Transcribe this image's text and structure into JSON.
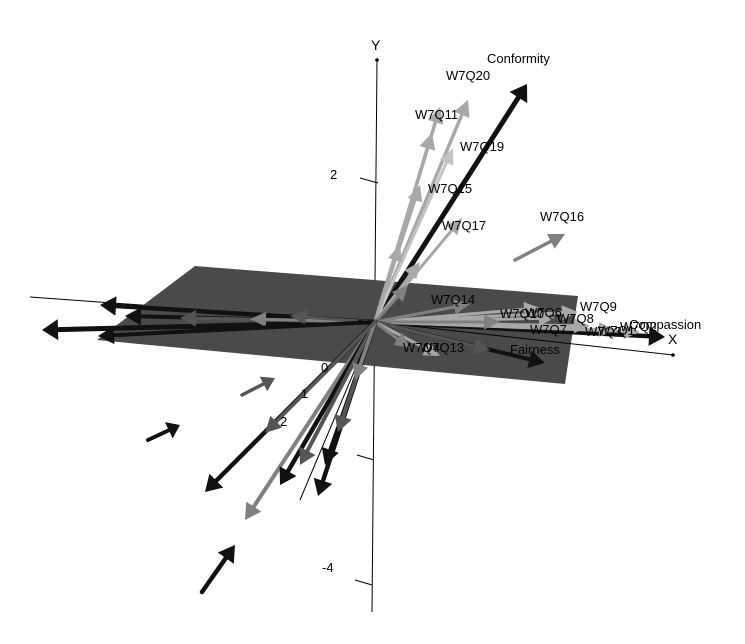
{
  "chart_data": {
    "type": "3d-biplot",
    "title": "",
    "axes": {
      "x": {
        "label": "X"
      },
      "y": {
        "label": "Y",
        "ticks": [
          2,
          -4
        ]
      },
      "z": {
        "ticks": [
          0,
          1,
          2
        ]
      }
    },
    "plane": {
      "color": "#4a4a4a"
    },
    "colors": {
      "black": "#111111",
      "dark_gray": "#555555",
      "mid_gray": "#808080",
      "light_gray": "#a8a8a8",
      "pale_gray": "#c4c4c4"
    },
    "labeled_vectors": [
      {
        "name": "Conformity",
        "color": "black"
      },
      {
        "name": "W7Q20",
        "color": "light_gray"
      },
      {
        "name": "W7Q11",
        "color": "light_gray"
      },
      {
        "name": "W7Q19",
        "color": "light_gray"
      },
      {
        "name": "W7Q15",
        "color": "light_gray"
      },
      {
        "name": "W7Q17",
        "color": "light_gray"
      },
      {
        "name": "W7Q16",
        "color": "light_gray"
      },
      {
        "name": "W7Q14",
        "color": "mid_gray"
      },
      {
        "name": "W7Q9",
        "color": "light_gray"
      },
      {
        "name": "W7Q8",
        "color": "light_gray"
      },
      {
        "name": "W7Q10",
        "color": "light_gray"
      },
      {
        "name": "W7Q6",
        "color": "light_gray"
      },
      {
        "name": "W7Q7",
        "color": "light_gray"
      },
      {
        "name": "W7Q3",
        "color": "light_gray"
      },
      {
        "name": "W7Q2",
        "color": "light_gray"
      },
      {
        "name": "W7Q1",
        "color": "light_gray"
      },
      {
        "name": "W7Q4",
        "color": "light_gray"
      },
      {
        "name": "W7Q13",
        "color": "light_gray"
      },
      {
        "name": "Compassion",
        "color": "black"
      },
      {
        "name": "Fairness",
        "color": "black"
      }
    ]
  }
}
